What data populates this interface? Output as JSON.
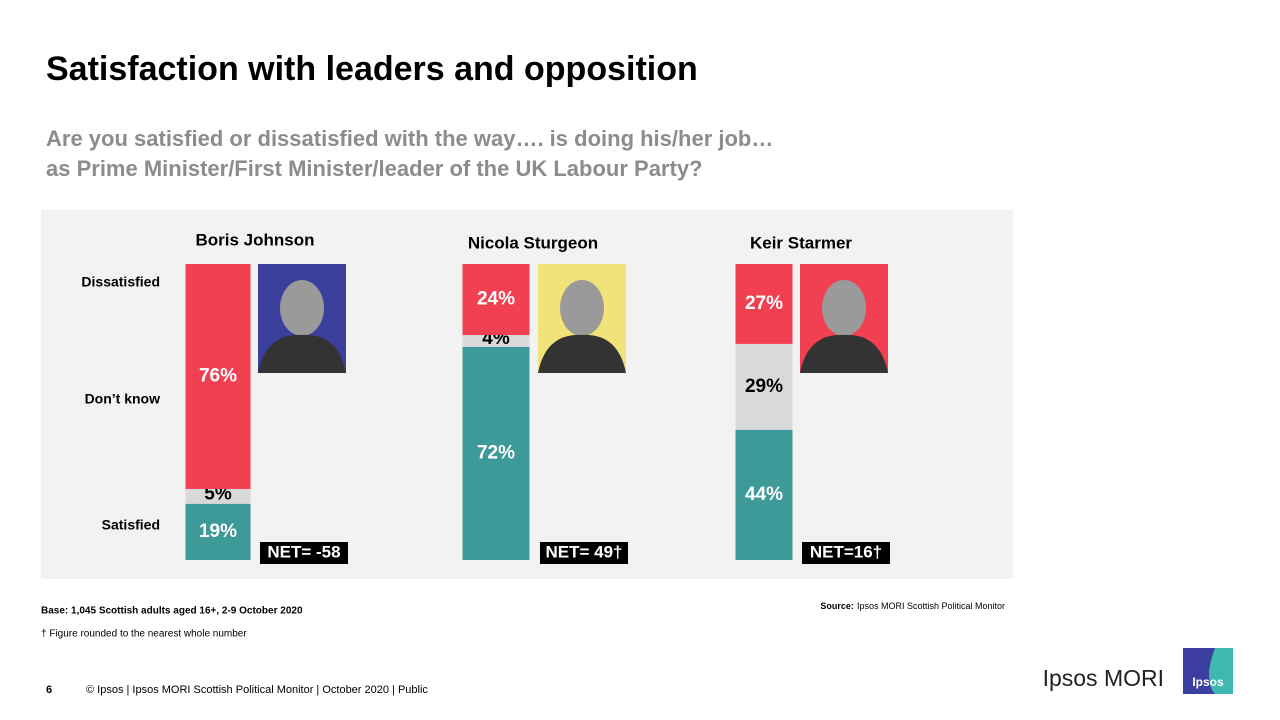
{
  "chart_data": {
    "type": "stacked_bar",
    "title": "Satisfaction with leaders and opposition",
    "subtitle": [
      "Are you satisfied or dissatisfied with the way…. is doing his/her job…",
      "as Prime Minister/First Minister/leader of the UK Labour Party?"
    ],
    "categories": [
      "Boris Johnson",
      "Nicola Sturgeon",
      "Keir Starmer"
    ],
    "series": [
      {
        "name": "Satisfied",
        "color": "#3e9999",
        "label_color": "#ffffff",
        "values": [
          19,
          72,
          44
        ],
        "value_labels": [
          "19%",
          "72%",
          "44%"
        ]
      },
      {
        "name": "Don’t know",
        "color": "#d9d9d9",
        "label_color": "#000000",
        "values": [
          5,
          4,
          29
        ],
        "value_labels": [
          "5%",
          "4%",
          "29%"
        ]
      },
      {
        "name": "Dissatisfied",
        "color": "#f24053",
        "label_color": "#ffffff",
        "values": [
          76,
          24,
          27
        ],
        "value_labels": [
          "76%",
          "24%",
          "27%"
        ]
      }
    ],
    "annotations": [
      "NET= -58",
      "NET= 49†",
      "NET=16†"
    ]
  },
  "notes": {
    "base": "Base: 1,045 Scottish adults aged 16+, 2-9 October 2020",
    "footnote": "† Figure rounded to the nearest whole number",
    "source_label": "Source:",
    "source": "Ipsos MORI Scottish Political Monitor"
  },
  "footer": {
    "page": "6",
    "copyright": "© Ipsos | Ipsos MORI Scottish Political Monitor | October 2020 | Public",
    "brand": "Ipsos MORI",
    "logo": "Ipsos"
  }
}
